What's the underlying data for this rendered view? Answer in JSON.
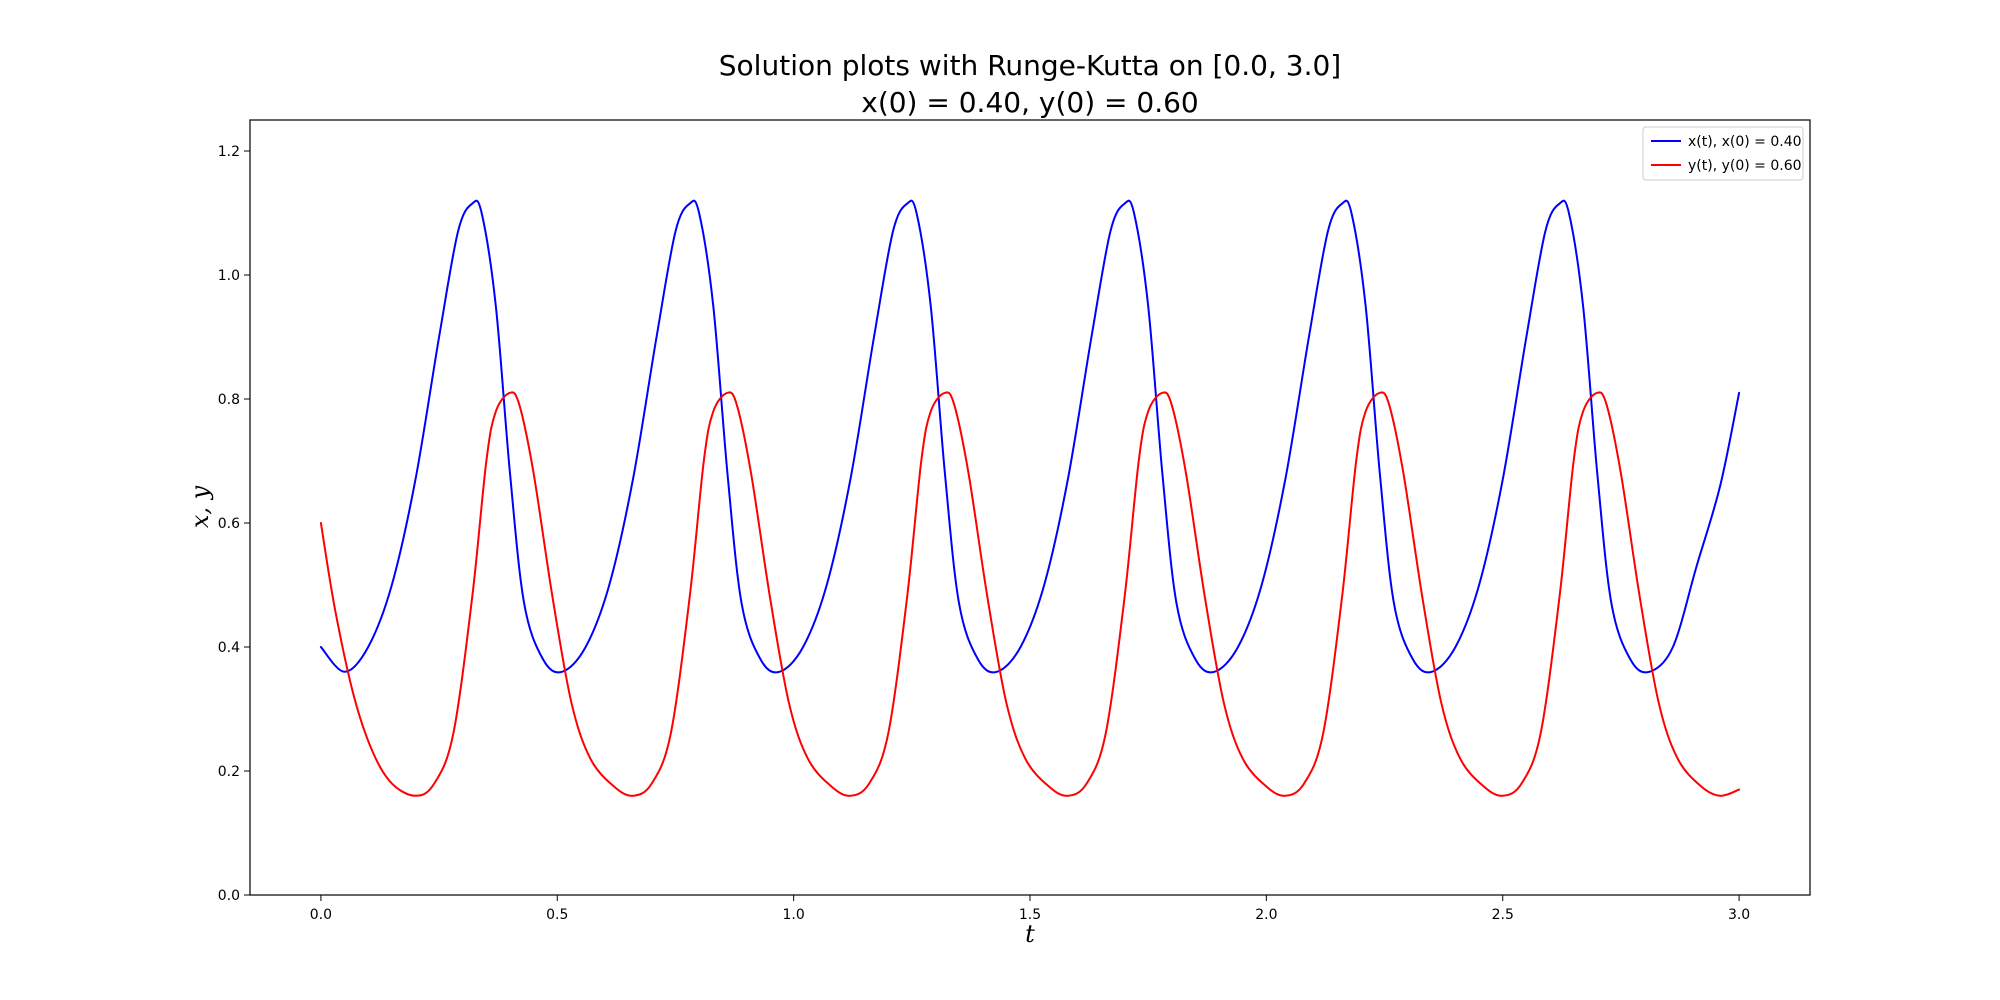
{
  "chart_data": {
    "type": "line",
    "title": "Solution plots with Runge-Kutta on [0.0, 3.0]",
    "subtitle": "x(0) = 0.40, y(0) = 0.60",
    "xlabel": "t",
    "ylabel": "x, y",
    "xlim": [
      -0.15,
      3.15
    ],
    "ylim": [
      0.0,
      1.25
    ],
    "xticks": [
      "0.0",
      "0.5",
      "1.0",
      "1.5",
      "2.0",
      "2.5",
      "3.0"
    ],
    "yticks": [
      "0.0",
      "0.2",
      "0.4",
      "0.6",
      "0.8",
      "1.0",
      "1.2"
    ],
    "grid": false,
    "legend_position": "top-right",
    "series": [
      {
        "name": "x(t), x(0) = 0.40",
        "color": "#0000ff",
        "x": [
          0.0,
          0.05,
          0.1,
          0.15,
          0.2,
          0.25,
          0.29,
          0.32,
          0.34,
          0.37,
          0.4,
          0.43,
          0.47,
          0.51,
          0.56,
          0.61,
          0.66,
          0.71,
          0.75,
          0.78,
          0.8,
          0.83,
          0.86,
          0.89,
          0.93,
          0.97,
          1.02,
          1.07,
          1.12,
          1.17,
          1.21,
          1.24,
          1.26,
          1.29,
          1.32,
          1.35,
          1.39,
          1.43,
          1.48,
          1.53,
          1.58,
          1.63,
          1.67,
          1.7,
          1.72,
          1.75,
          1.78,
          1.81,
          1.85,
          1.89,
          1.94,
          1.99,
          2.04,
          2.09,
          2.13,
          2.16,
          2.18,
          2.21,
          2.24,
          2.27,
          2.31,
          2.35,
          2.4,
          2.45,
          2.5,
          2.55,
          2.59,
          2.62,
          2.64,
          2.67,
          2.7,
          2.73,
          2.77,
          2.81,
          2.86,
          2.91,
          2.96,
          3.0
        ],
        "y": [
          0.4,
          0.36,
          0.4,
          0.5,
          0.67,
          0.9,
          1.07,
          1.115,
          1.1,
          0.95,
          0.68,
          0.47,
          0.38,
          0.36,
          0.4,
          0.5,
          0.67,
          0.9,
          1.07,
          1.115,
          1.1,
          0.95,
          0.68,
          0.47,
          0.38,
          0.36,
          0.4,
          0.5,
          0.67,
          0.9,
          1.07,
          1.115,
          1.1,
          0.95,
          0.68,
          0.47,
          0.38,
          0.36,
          0.4,
          0.5,
          0.67,
          0.9,
          1.07,
          1.115,
          1.1,
          0.95,
          0.68,
          0.47,
          0.38,
          0.36,
          0.4,
          0.5,
          0.67,
          0.9,
          1.07,
          1.115,
          1.1,
          0.95,
          0.68,
          0.47,
          0.38,
          0.36,
          0.4,
          0.5,
          0.67,
          0.9,
          1.07,
          1.115,
          1.1,
          0.95,
          0.68,
          0.47,
          0.38,
          0.36,
          0.4,
          0.53,
          0.66,
          0.81
        ]
      },
      {
        "name": "y(t), y(0) = 0.60",
        "color": "#ff0000",
        "x": [
          0.0,
          0.03,
          0.07,
          0.11,
          0.15,
          0.2,
          0.24,
          0.28,
          0.32,
          0.35,
          0.37,
          0.4,
          0.42,
          0.45,
          0.49,
          0.53,
          0.57,
          0.62,
          0.66,
          0.7,
          0.74,
          0.78,
          0.81,
          0.83,
          0.86,
          0.88,
          0.91,
          0.95,
          0.99,
          1.03,
          1.08,
          1.12,
          1.16,
          1.2,
          1.24,
          1.27,
          1.29,
          1.32,
          1.34,
          1.37,
          1.41,
          1.45,
          1.49,
          1.54,
          1.58,
          1.62,
          1.66,
          1.7,
          1.73,
          1.75,
          1.78,
          1.8,
          1.83,
          1.87,
          1.91,
          1.95,
          2.0,
          2.04,
          2.08,
          2.12,
          2.16,
          2.19,
          2.21,
          2.24,
          2.26,
          2.29,
          2.33,
          2.37,
          2.41,
          2.46,
          2.5,
          2.54,
          2.58,
          2.62,
          2.65,
          2.67,
          2.7,
          2.72,
          2.75,
          2.79,
          2.83,
          2.87,
          2.92,
          2.96,
          3.0
        ],
        "y": [
          0.6,
          0.46,
          0.32,
          0.23,
          0.18,
          0.16,
          0.18,
          0.26,
          0.48,
          0.7,
          0.78,
          0.81,
          0.79,
          0.68,
          0.48,
          0.31,
          0.22,
          0.175,
          0.16,
          0.18,
          0.26,
          0.48,
          0.7,
          0.78,
          0.81,
          0.79,
          0.68,
          0.48,
          0.31,
          0.22,
          0.175,
          0.16,
          0.18,
          0.26,
          0.48,
          0.7,
          0.78,
          0.81,
          0.79,
          0.68,
          0.48,
          0.31,
          0.22,
          0.175,
          0.16,
          0.18,
          0.26,
          0.48,
          0.7,
          0.78,
          0.81,
          0.79,
          0.68,
          0.48,
          0.31,
          0.22,
          0.175,
          0.16,
          0.18,
          0.26,
          0.48,
          0.7,
          0.78,
          0.81,
          0.79,
          0.68,
          0.48,
          0.31,
          0.22,
          0.175,
          0.16,
          0.18,
          0.26,
          0.48,
          0.7,
          0.78,
          0.81,
          0.79,
          0.68,
          0.48,
          0.31,
          0.22,
          0.175,
          0.16,
          0.17
        ]
      }
    ]
  }
}
